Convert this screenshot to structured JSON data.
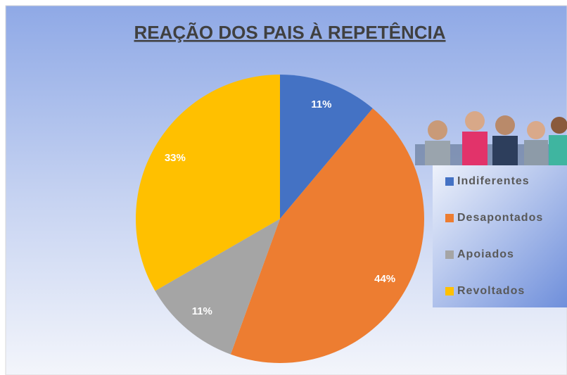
{
  "chart_data": {
    "type": "pie",
    "title": "REAÇÃO DOS PAIS À REPETÊNCIA",
    "categories": [
      "Indiferentes",
      "Desapontados",
      "Apoiados",
      "Revoltados"
    ],
    "values": [
      11,
      44,
      11,
      33
    ],
    "value_labels": [
      "11%",
      "44%",
      "11%",
      "33%"
    ],
    "colors": [
      "#4472c4",
      "#ed7d31",
      "#a5a5a5",
      "#ffc000"
    ],
    "legend": "right"
  }
}
